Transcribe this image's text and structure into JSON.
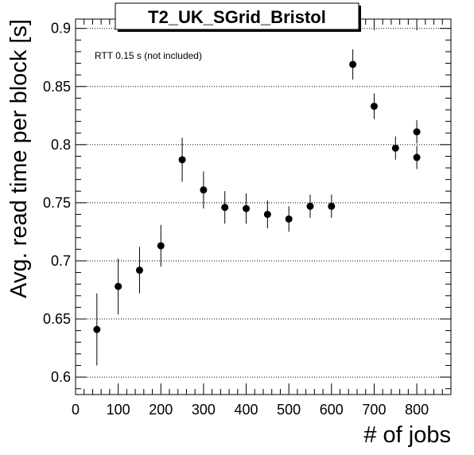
{
  "chart_data": {
    "type": "scatter",
    "title": "T2_UK_SGrid_Bristol",
    "xlabel": "# of jobs",
    "ylabel": "Avg. read time per block [s]",
    "annotation": "RTT 0.15 s (not included)",
    "xlim": [
      0,
      880
    ],
    "ylim": [
      0.585,
      0.908
    ],
    "x_ticks": [
      0,
      100,
      200,
      300,
      400,
      500,
      600,
      700,
      800
    ],
    "y_ticks": [
      0.6,
      0.65,
      0.7,
      0.75,
      0.8,
      0.85,
      0.9
    ],
    "y_tick_labels": [
      "0.6",
      "0.65",
      "0.7",
      "0.75",
      "0.8",
      "0.85",
      "0.9"
    ],
    "grid": "horizontal dotted",
    "marker_color": "#000000",
    "series": [
      {
        "points": [
          {
            "x": 50,
            "y": 0.641,
            "err": 0.031
          },
          {
            "x": 100,
            "y": 0.678,
            "err": 0.024
          },
          {
            "x": 150,
            "y": 0.692,
            "err": 0.02
          },
          {
            "x": 200,
            "y": 0.713,
            "err": 0.018
          },
          {
            "x": 250,
            "y": 0.787,
            "err": 0.019
          },
          {
            "x": 300,
            "y": 0.761,
            "err": 0.016
          },
          {
            "x": 350,
            "y": 0.746,
            "err": 0.014
          },
          {
            "x": 400,
            "y": 0.745,
            "err": 0.013
          },
          {
            "x": 450,
            "y": 0.74,
            "err": 0.012
          },
          {
            "x": 500,
            "y": 0.736,
            "err": 0.011
          },
          {
            "x": 550,
            "y": 0.747,
            "err": 0.01
          },
          {
            "x": 600,
            "y": 0.747,
            "err": 0.01
          },
          {
            "x": 650,
            "y": 0.869,
            "err": 0.013
          },
          {
            "x": 700,
            "y": 0.833,
            "err": 0.011
          },
          {
            "x": 750,
            "y": 0.797,
            "err": 0.01
          },
          {
            "x": 800,
            "y": 0.811,
            "err": 0.01
          },
          {
            "x": 800,
            "y": 0.789,
            "err": 0.01
          }
        ]
      }
    ]
  }
}
